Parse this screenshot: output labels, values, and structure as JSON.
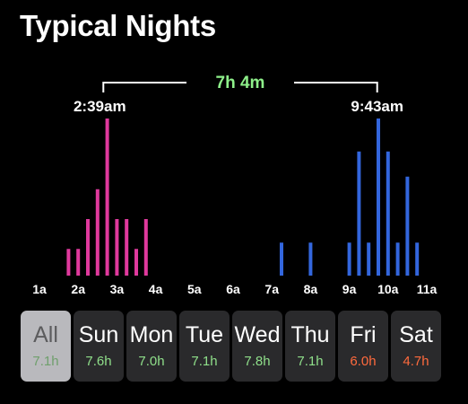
{
  "header": {
    "title": "Typical Nights"
  },
  "colors": {
    "bedtime": "#e0399d",
    "wake": "#3366dd",
    "duration_text": "#8ef08a",
    "good_avg": "#8fdf8a",
    "bad_avg": "#ff6a3d"
  },
  "chart_data": {
    "type": "bar",
    "x_unit": "time of day (hours from midnight)",
    "x_ticks": [
      "1a",
      "2a",
      "3a",
      "4a",
      "5a",
      "6a",
      "7a",
      "8a",
      "9a",
      "10a",
      "11a"
    ],
    "xlim": [
      1,
      11
    ],
    "y_unit": "relative frequency (approx, 0-10)",
    "ylim": [
      0,
      10
    ],
    "grid": false,
    "duration_label": "7h 4m",
    "bedtime": {
      "label": "2:39am",
      "x": 2.65,
      "color": "#e0399d",
      "bars": [
        {
          "x": 1.75,
          "y": 1.7
        },
        {
          "x": 2.0,
          "y": 1.7
        },
        {
          "x": 2.25,
          "y": 3.6
        },
        {
          "x": 2.5,
          "y": 5.5
        },
        {
          "x": 2.75,
          "y": 10.0
        },
        {
          "x": 3.0,
          "y": 3.6
        },
        {
          "x": 3.25,
          "y": 3.6
        },
        {
          "x": 3.5,
          "y": 1.7
        },
        {
          "x": 3.75,
          "y": 3.6
        }
      ]
    },
    "wake": {
      "label": "9:43am",
      "x": 9.72,
      "color": "#3366dd",
      "bars": [
        {
          "x": 7.25,
          "y": 2.1
        },
        {
          "x": 8.0,
          "y": 2.1
        },
        {
          "x": 9.0,
          "y": 2.1
        },
        {
          "x": 9.25,
          "y": 7.9
        },
        {
          "x": 9.5,
          "y": 2.1
        },
        {
          "x": 9.75,
          "y": 10.0
        },
        {
          "x": 10.0,
          "y": 7.9
        },
        {
          "x": 10.25,
          "y": 2.1
        },
        {
          "x": 10.5,
          "y": 6.3
        },
        {
          "x": 10.75,
          "y": 2.1
        }
      ]
    }
  },
  "days": [
    {
      "name": "All",
      "avg": "7.1h",
      "status": "good",
      "selected": true
    },
    {
      "name": "Sun",
      "avg": "7.6h",
      "status": "good",
      "selected": false
    },
    {
      "name": "Mon",
      "avg": "7.0h",
      "status": "good",
      "selected": false
    },
    {
      "name": "Tue",
      "avg": "7.1h",
      "status": "good",
      "selected": false
    },
    {
      "name": "Wed",
      "avg": "7.8h",
      "status": "good",
      "selected": false
    },
    {
      "name": "Thu",
      "avg": "7.1h",
      "status": "good",
      "selected": false
    },
    {
      "name": "Fri",
      "avg": "6.0h",
      "status": "bad",
      "selected": false
    },
    {
      "name": "Sat",
      "avg": "4.7h",
      "status": "bad",
      "selected": false
    }
  ]
}
